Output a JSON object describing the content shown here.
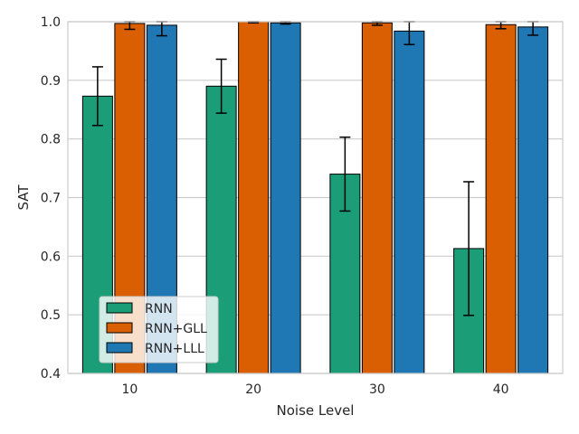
{
  "chart_data": {
    "type": "bar",
    "title": "",
    "xlabel": "Noise Level",
    "ylabel": "SAT",
    "ylim": [
      0.4,
      1.0
    ],
    "yticks": [
      "0.4",
      "0.5",
      "0.6",
      "0.7",
      "0.8",
      "0.9",
      "1.0"
    ],
    "grid": true,
    "legend_position": "lower-left",
    "categories": [
      "10",
      "20",
      "30",
      "40"
    ],
    "series": [
      {
        "name": "RNN",
        "color": "#1b9e77",
        "values": [
          0.873,
          0.89,
          0.74,
          0.613
        ],
        "errors": [
          0.05,
          0.046,
          0.063,
          0.114
        ]
      },
      {
        "name": "RNN+GLL",
        "color": "#d95f02",
        "values": [
          0.997,
          1.0,
          0.998,
          0.995
        ],
        "errors": [
          0.01,
          0.002,
          0.004,
          0.007
        ]
      },
      {
        "name": "RNN+LLL",
        "color": "#1f77b4",
        "values": [
          0.994,
          0.998,
          0.984,
          0.991
        ],
        "errors": [
          0.018,
          0.002,
          0.023,
          0.014
        ]
      }
    ]
  }
}
